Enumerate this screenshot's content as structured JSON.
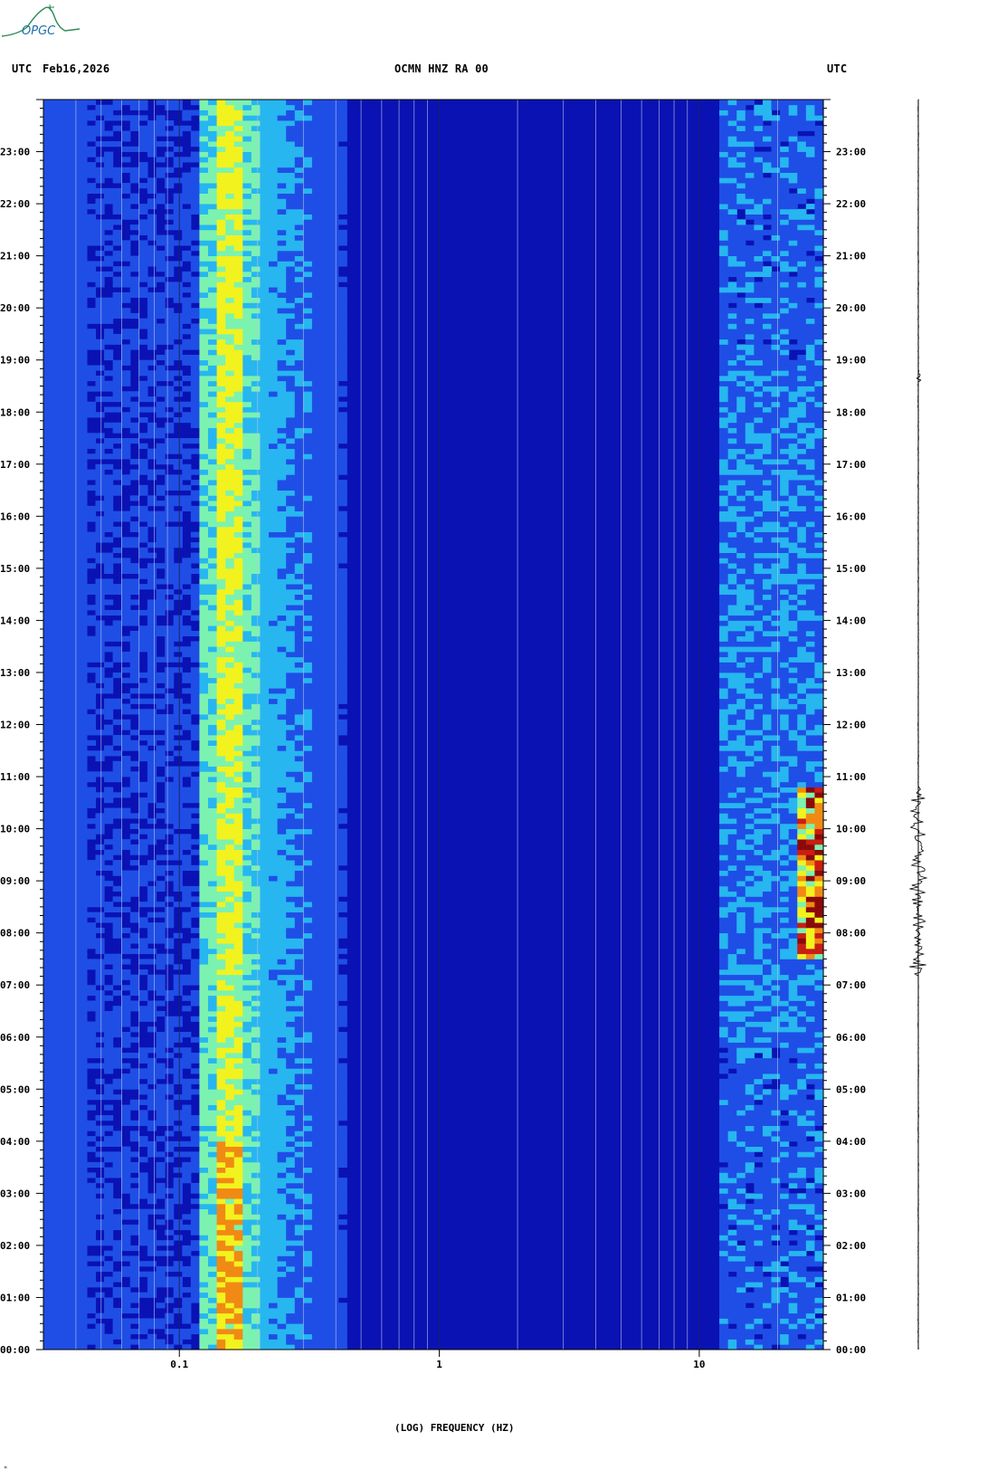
{
  "header": {
    "left_tz": "UTC",
    "date": "Feb16,2026",
    "station": "OCMN HNZ RA 00",
    "right_tz": "UTC"
  },
  "logo": {
    "text": "OPGC",
    "color": "#2e8b57"
  },
  "footer": {
    "mark": "ᴹ"
  },
  "chart_data": {
    "type": "heatmap",
    "title": "OCMN HNZ RA 00",
    "xlabel": "(LOG) FREQUENCY (HZ)",
    "ylabel": "",
    "x_scale": "log",
    "xlim": [
      0.03,
      30
    ],
    "ylim": [
      "00:00",
      "24:00"
    ],
    "x_tick_labels": [
      "0.1",
      "1",
      "10"
    ],
    "x_ticks": [
      0.1,
      1,
      10
    ],
    "y_tick_labels": [
      "00:00",
      "01:00",
      "02:00",
      "03:00",
      "04:00",
      "05:00",
      "06:00",
      "07:00",
      "08:00",
      "09:00",
      "10:00",
      "11:00",
      "12:00",
      "13:00",
      "14:00",
      "15:00",
      "16:00",
      "17:00",
      "18:00",
      "19:00",
      "20:00",
      "21:00",
      "22:00",
      "23:00"
    ],
    "features": {
      "microseism_band_hz": [
        0.12,
        0.2
      ],
      "microseism_peak_hz": [
        0.14,
        0.17
      ],
      "high_freq_noise_hz": [
        12,
        30
      ],
      "strong_event_hours": [
        7.5,
        10.8
      ],
      "strong_event_hz": [
        24,
        30
      ]
    },
    "colors": [
      "#0a12b4",
      "#1f4ee6",
      "#27b6f0",
      "#7cf2b0",
      "#f2f21e",
      "#f08a14",
      "#c81e14",
      "#8a0a0a"
    ]
  }
}
